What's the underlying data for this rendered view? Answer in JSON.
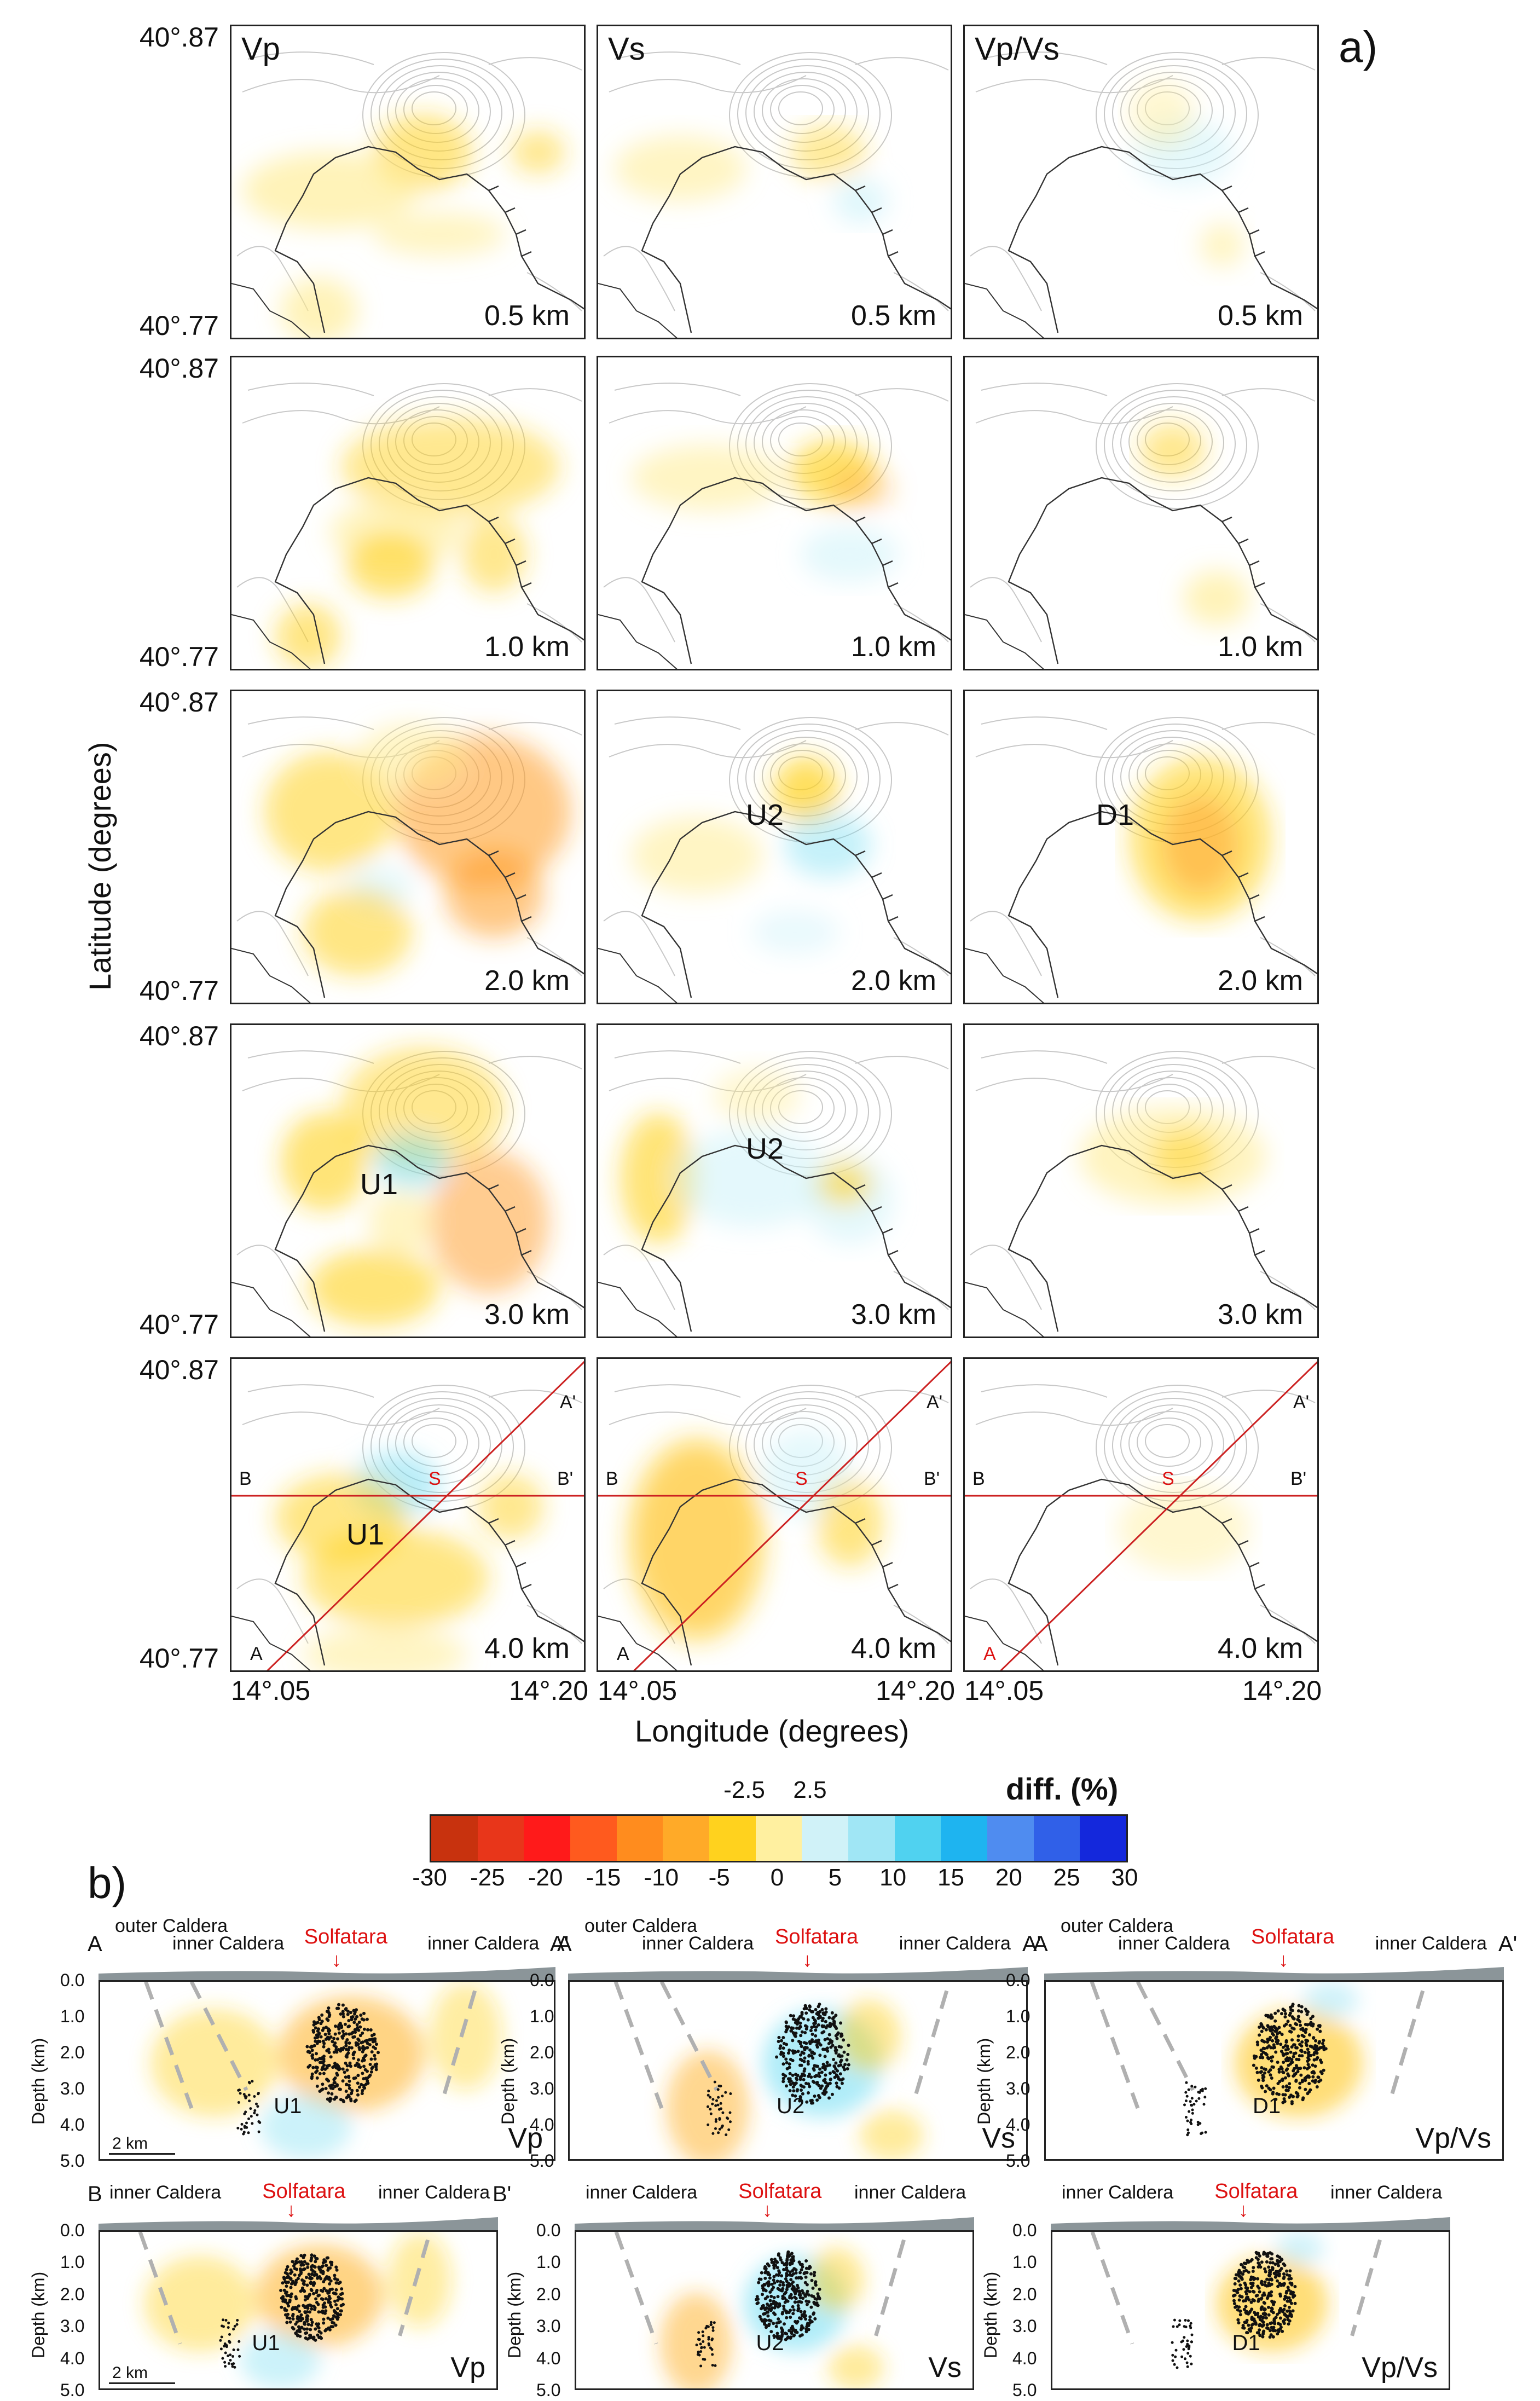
{
  "panel_a_label": "a)",
  "panel_b_label": "b)",
  "columns": [
    "Vp",
    "Vs",
    "Vp/Vs"
  ],
  "depths": [
    "0.5 km",
    "1.0 km",
    "2.0 km",
    "3.0 km",
    "4.0 km"
  ],
  "lat_top": "40°.87",
  "lat_bottom": "40°.77",
  "lon_left": "14°.05",
  "lon_right": "14°.20",
  "y_axis_title": "Latitude (degrees)",
  "x_axis_title": "Longitude (degrees)",
  "anomalies": {
    "U1": "U1",
    "U2": "U2",
    "D1": "D1"
  },
  "profile_labels": {
    "A": "A",
    "A_prime": "A'",
    "B": "B",
    "B_prime": "B'",
    "S": "S"
  },
  "colorbar": {
    "title": "diff. (%)",
    "ticks": [
      "-30",
      "-25",
      "-20",
      "-15",
      "-10",
      "-5",
      "0",
      "5",
      "10",
      "15",
      "20",
      "25",
      "30"
    ],
    "extra_ticks": [
      "-2.5",
      "2.5"
    ],
    "colors": [
      "#c8320e",
      "#e8361a",
      "#ff1a1a",
      "#ff5a1e",
      "#ff8c1e",
      "#ffaa28",
      "#ffd21e",
      "#fff0a0",
      "#d0f2f8",
      "#a0e6f5",
      "#50d2f0",
      "#1eb4f0",
      "#4f8cf0",
      "#3060e8",
      "#1428dc"
    ]
  },
  "sections": {
    "depth_title": "Depth (km)",
    "depth_ticks": [
      "0.0",
      "1.0",
      "2.0",
      "3.0",
      "4.0",
      "5.0"
    ],
    "scale": "2 km",
    "outer_caldera": "outer Caldera",
    "inner_caldera": "inner Caldera",
    "solfatara": "Solfatara",
    "top_row_ends": [
      "A",
      "A'"
    ],
    "bottom_row_ends": [
      "B",
      "B'"
    ],
    "row1": [
      {
        "param": "Vp",
        "anomaly": "U1"
      },
      {
        "param": "Vs",
        "anomaly": "U2"
      },
      {
        "param": "Vp/Vs",
        "anomaly": "D1"
      }
    ],
    "row2": [
      {
        "param": "Vp",
        "anomaly": "U1"
      },
      {
        "param": "Vs",
        "anomaly": "U2"
      },
      {
        "param": "Vp/Vs",
        "anomaly": "D1"
      }
    ]
  }
}
